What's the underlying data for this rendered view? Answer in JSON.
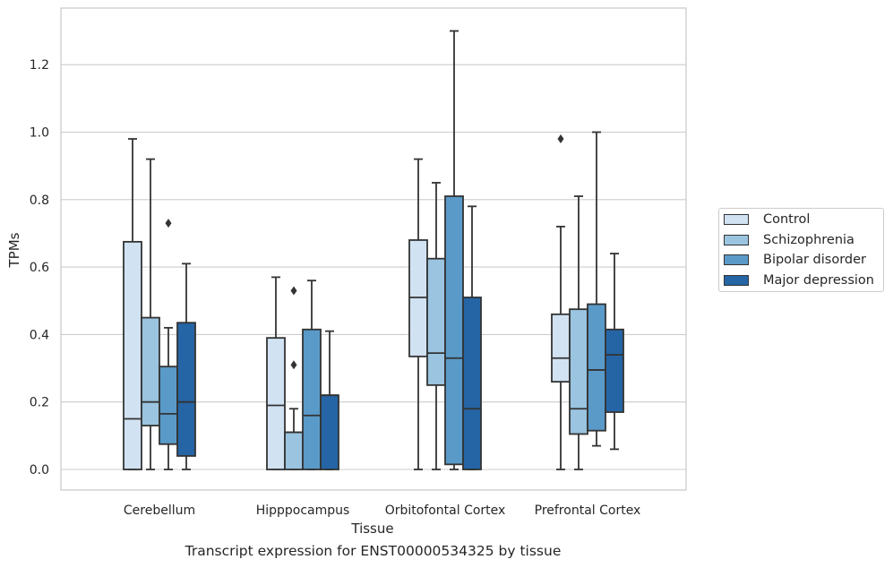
{
  "chart_data": {
    "type": "box",
    "title": "",
    "caption": "Transcript expression for ENST00000534325 by tissue",
    "xlabel": "Tissue",
    "ylabel": "TPMs",
    "ylim": [
      -0.065,
      1.375
    ],
    "yticks": [
      "0.0",
      "0.2",
      "0.4",
      "0.6",
      "0.8",
      "1.0",
      "1.2"
    ],
    "ytick_values": [
      0.0,
      0.2,
      0.4,
      0.6,
      0.8,
      1.0,
      1.2
    ],
    "grid": "horizontal",
    "legend_position": "right",
    "categories": [
      "Cerebellum",
      "Hipppocampus",
      "Orbitofontal Cortex",
      "Prefrontal Cortex"
    ],
    "series": [
      {
        "name": "Control",
        "color": "#d1e2f2",
        "boxes": [
          {
            "whislo": 0.0,
            "q1": 0.0,
            "med": 0.15,
            "q3": 0.675,
            "whishi": 0.98,
            "fliers": []
          },
          {
            "whislo": 0.0,
            "q1": 0.0,
            "med": 0.19,
            "q3": 0.39,
            "whishi": 0.57,
            "fliers": []
          },
          {
            "whislo": 0.0,
            "q1": 0.335,
            "med": 0.51,
            "q3": 0.68,
            "whishi": 0.92,
            "fliers": []
          },
          {
            "whislo": 0.0,
            "q1": 0.26,
            "med": 0.33,
            "q3": 0.46,
            "whishi": 0.72,
            "fliers": [
              0.98
            ]
          }
        ]
      },
      {
        "name": "Schizophrenia",
        "color": "#9ac4df",
        "boxes": [
          {
            "whislo": 0.0,
            "q1": 0.13,
            "med": 0.2,
            "q3": 0.45,
            "whishi": 0.92,
            "fliers": []
          },
          {
            "whislo": 0.0,
            "q1": 0.0,
            "med": 0.11,
            "q3": 0.11,
            "whishi": 0.18,
            "fliers": [
              0.31,
              0.53
            ]
          },
          {
            "whislo": 0.0,
            "q1": 0.25,
            "med": 0.345,
            "q3": 0.625,
            "whishi": 0.85,
            "fliers": []
          },
          {
            "whislo": 0.0,
            "q1": 0.105,
            "med": 0.18,
            "q3": 0.475,
            "whishi": 0.81,
            "fliers": []
          }
        ]
      },
      {
        "name": "Bipolar disorder",
        "color": "#5a9ac8",
        "boxes": [
          {
            "whislo": 0.0,
            "q1": 0.075,
            "med": 0.165,
            "q3": 0.305,
            "whishi": 0.42,
            "fliers": [
              0.73
            ]
          },
          {
            "whislo": 0.0,
            "q1": 0.0,
            "med": 0.16,
            "q3": 0.415,
            "whishi": 0.56,
            "fliers": []
          },
          {
            "whislo": 0.0,
            "q1": 0.015,
            "med": 0.33,
            "q3": 0.81,
            "whishi": 1.3,
            "fliers": []
          },
          {
            "whislo": 0.07,
            "q1": 0.115,
            "med": 0.295,
            "q3": 0.49,
            "whishi": 1.0,
            "fliers": []
          }
        ]
      },
      {
        "name": "Major depression",
        "color": "#2565a5",
        "boxes": [
          {
            "whislo": 0.0,
            "q1": 0.04,
            "med": 0.2,
            "q3": 0.435,
            "whishi": 0.61,
            "fliers": []
          },
          {
            "whislo": 0.0,
            "q1": 0.0,
            "med": 0.22,
            "q3": 0.22,
            "whishi": 0.41,
            "fliers": []
          },
          {
            "whislo": 0.0,
            "q1": 0.0,
            "med": 0.18,
            "q3": 0.51,
            "whishi": 0.78,
            "fliers": []
          },
          {
            "whislo": 0.06,
            "q1": 0.17,
            "med": 0.34,
            "q3": 0.415,
            "whishi": 0.64,
            "fliers": []
          }
        ]
      }
    ]
  }
}
